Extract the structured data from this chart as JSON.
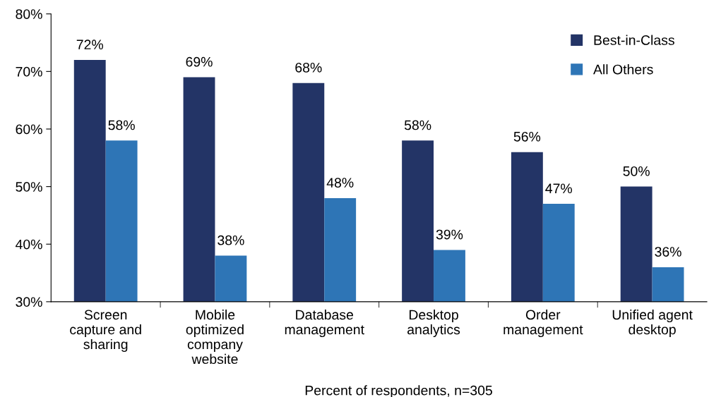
{
  "chart_data": {
    "type": "bar",
    "categories": [
      "Screen\ncapture and\nsharing",
      "Mobile\noptimized\ncompany\nwebsite",
      "Database\nmanagement",
      "Desktop\nanalytics",
      "Order\nmanagement",
      "Unified agent\ndesktop"
    ],
    "series": [
      {
        "name": "Best-in-Class",
        "color": "#233466",
        "values": [
          72,
          69,
          68,
          58,
          56,
          50
        ],
        "value_labels": [
          "72%",
          "69%",
          "68%",
          "58%",
          "56%",
          "50%"
        ]
      },
      {
        "name": "All Others",
        "color": "#2e75b6",
        "values": [
          58,
          38,
          48,
          39,
          47,
          36
        ],
        "value_labels": [
          "58%",
          "38%",
          "48%",
          "39%",
          "47%",
          "36%"
        ]
      }
    ],
    "xlabel": "Percent of respondents, n=305",
    "ylim": [
      30,
      80
    ],
    "yticks": [
      {
        "value": 30,
        "label": "30%"
      },
      {
        "value": 40,
        "label": "40%"
      },
      {
        "value": 50,
        "label": "50%"
      },
      {
        "value": 60,
        "label": "60%"
      },
      {
        "value": 70,
        "label": "70%"
      },
      {
        "value": 80,
        "label": "80%"
      }
    ],
    "grid": false,
    "legend": "top right"
  }
}
